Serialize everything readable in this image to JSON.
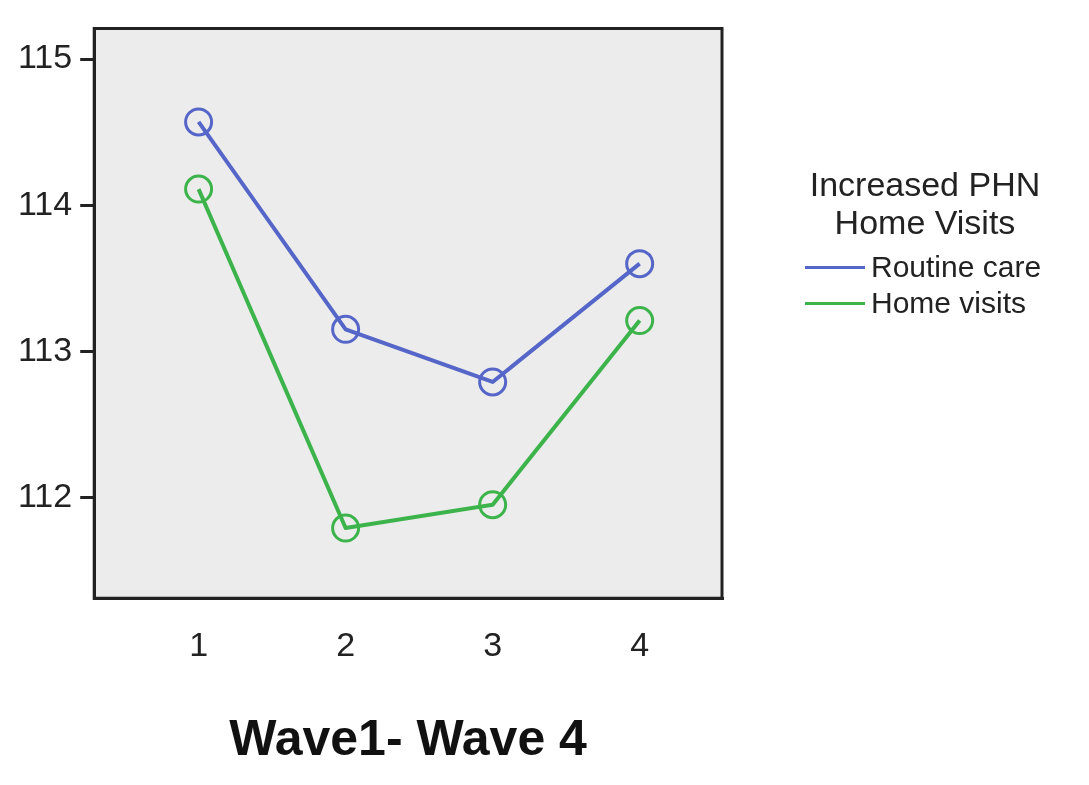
{
  "chart_data": {
    "type": "line",
    "xlabel": "Wave1- Wave 4",
    "legend_title": "Increased PHN Home Visits",
    "legend": "right",
    "marker": "circle",
    "grid": false,
    "x": [
      1,
      2,
      3,
      4
    ],
    "xlim": [
      0.29,
      4.56
    ],
    "xticks": [
      1,
      2,
      3,
      4
    ],
    "ylim": [
      111.31,
      115.21
    ],
    "yticks": [
      112,
      113,
      114,
      115
    ],
    "series": [
      {
        "name": "Routine care",
        "color": "#5566c8",
        "values": [
          114.57,
          113.15,
          112.79,
          113.6
        ]
      },
      {
        "name": "Home visits",
        "color": "#3cb44b",
        "values": [
          114.11,
          111.79,
          111.95,
          113.21
        ]
      }
    ]
  }
}
